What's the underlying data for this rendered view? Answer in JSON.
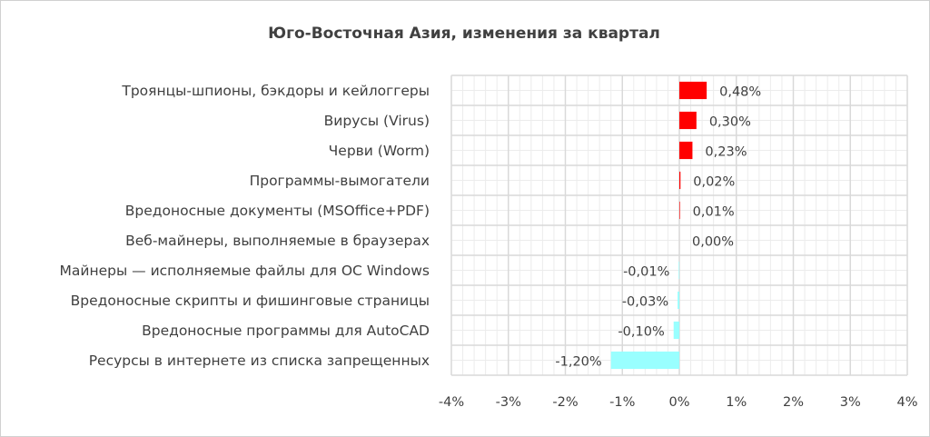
{
  "chart_data": {
    "type": "bar",
    "orientation": "horizontal",
    "title": "Юго-Восточная Азия, изменения за квартал",
    "categories": [
      "Троянцы-шпионы, бэкдоры и кейлоггеры",
      "Вирусы (Virus)",
      "Черви (Worm)",
      "Программы-вымогатели",
      "Вредоносные документы (MSOffice+PDF)",
      "Веб-майнеры, выполняемые в браузерах",
      "Майнеры — исполняемые файлы для ОС Windows",
      "Вредоносные скрипты и фишинговые страницы",
      "Вредоносные программы для AutoCAD",
      "Ресурсы в интернете из списка запрещенных"
    ],
    "values": [
      0.48,
      0.3,
      0.23,
      0.02,
      0.01,
      0.0,
      -0.01,
      -0.03,
      -0.1,
      -1.2
    ],
    "data_labels": [
      "0,48%",
      "0,30%",
      "0,23%",
      "0,02%",
      "0,01%",
      "0,00%",
      "-0,01%",
      "-0,03%",
      "-0,10%",
      "-1,20%"
    ],
    "xlim": [
      -4,
      4
    ],
    "xticks": [
      "-4%",
      "-3%",
      "-2%",
      "-1%",
      "0%",
      "1%",
      "2%",
      "3%",
      "4%"
    ],
    "grid": true,
    "colors": {
      "positive": "#ff0000",
      "negative": "#99ffff",
      "grid": "#d9d9d9"
    }
  }
}
